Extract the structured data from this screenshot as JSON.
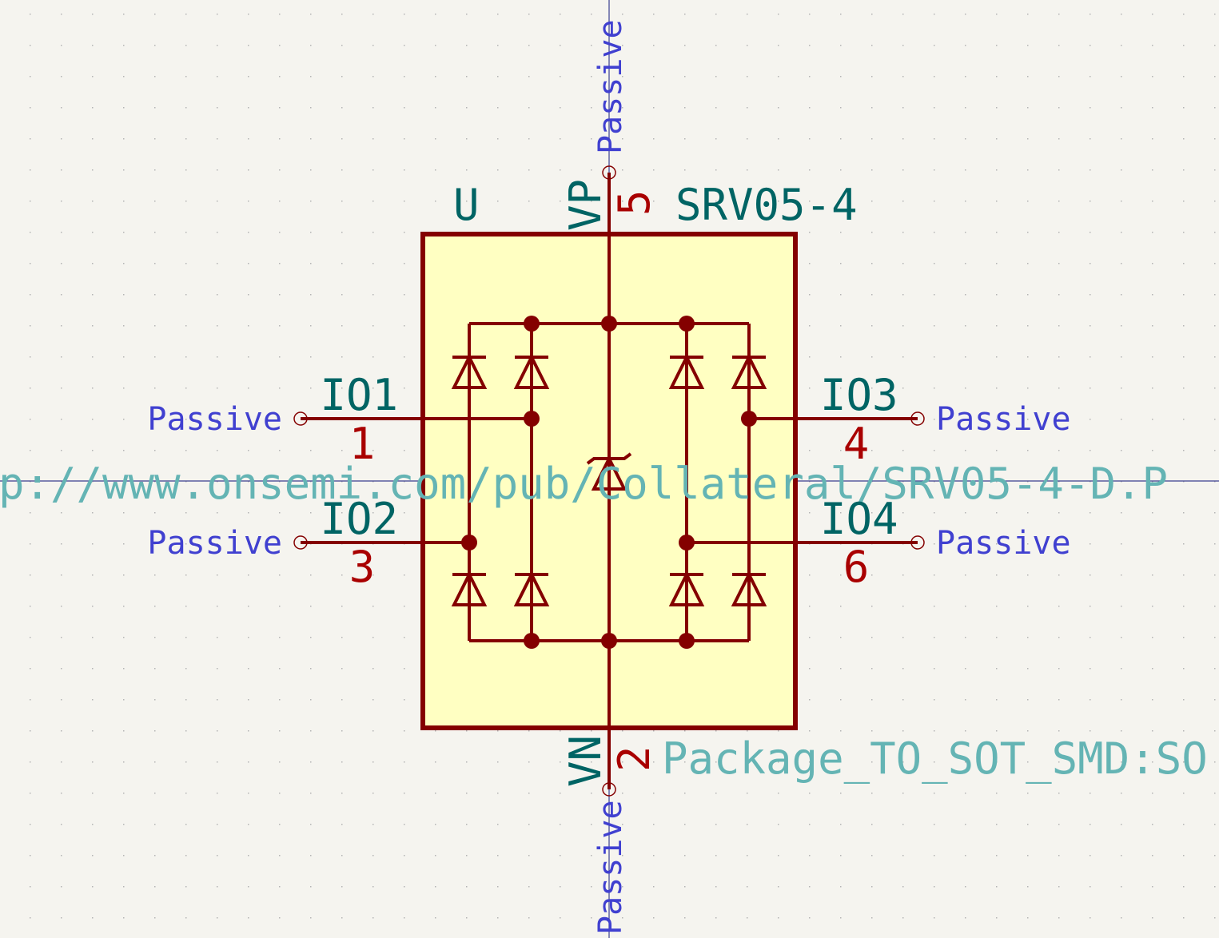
{
  "symbol": {
    "reference": "U",
    "value": "SRV05-4",
    "datasheet": "p://www.onsemi.com/pub/Collateral/SRV05-4-D.P",
    "footprint": "Package_TO_SOT_SMD:SO"
  },
  "pins": [
    {
      "id": "pin-vp",
      "name": "VP",
      "number": "5",
      "type": "Passive"
    },
    {
      "id": "pin-vn",
      "name": "VN",
      "number": "2",
      "type": "Passive"
    },
    {
      "id": "pin-io1",
      "name": "IO1",
      "number": "1",
      "type": "Passive"
    },
    {
      "id": "pin-io2",
      "name": "IO2",
      "number": "3",
      "type": "Passive"
    },
    {
      "id": "pin-io3",
      "name": "IO3",
      "number": "4",
      "type": "Passive"
    },
    {
      "id": "pin-io4",
      "name": "IO4",
      "number": "6",
      "type": "Passive"
    }
  ],
  "colors": {
    "background": "#f5f4ef",
    "grid": "#b4b4b4",
    "body_fill": "#ffffc2",
    "outline": "#840000",
    "pin_name": "#006464",
    "pin_number": "#a90000",
    "pin_type": "#4040d0",
    "field": "#64b4b4",
    "axis": "#3a3f8f"
  }
}
